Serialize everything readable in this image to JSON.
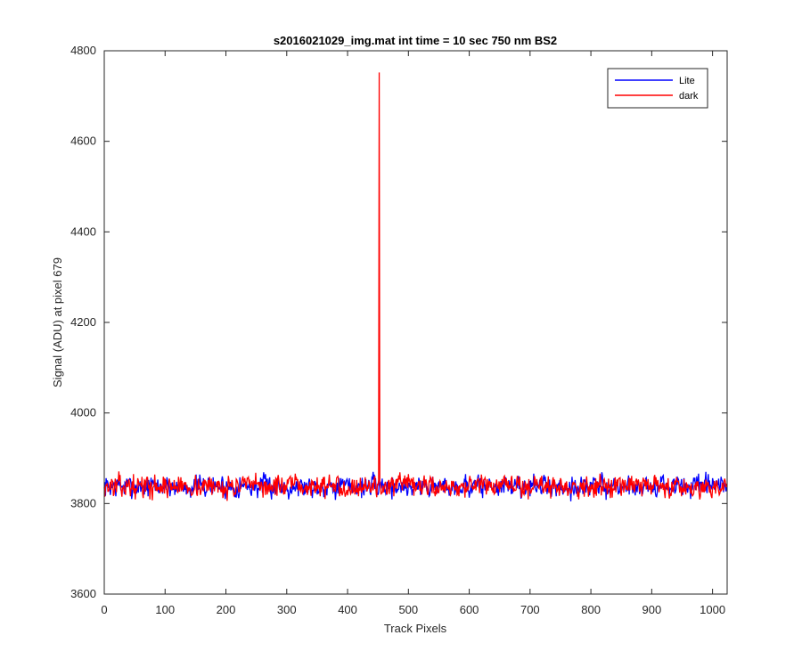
{
  "chart_data": {
    "type": "line",
    "title": "s2016021029_img.mat int time = 10 sec  750 nm BS2",
    "xlabel": "Track Pixels",
    "ylabel": "Signal (ADU) at pixel 679",
    "xlim": [
      0,
      1024
    ],
    "ylim": [
      3600,
      4800
    ],
    "xticks": [
      0,
      100,
      200,
      300,
      400,
      500,
      600,
      700,
      800,
      900,
      1000
    ],
    "yticks": [
      3600,
      3800,
      4000,
      4200,
      4400,
      4600,
      4800
    ],
    "grid": false,
    "legend_position": "top-right",
    "noise": {
      "mean": 3838,
      "amplitude": 22,
      "length": 1024
    },
    "series": [
      {
        "name": "Lite",
        "color": "#0000ff",
        "seed": 7,
        "spikes": [],
        "values": []
      },
      {
        "name": "dark",
        "color": "#ff0000",
        "seed": 13,
        "spikes": [
          {
            "x": 452,
            "y": 4752
          }
        ],
        "values": []
      }
    ]
  }
}
